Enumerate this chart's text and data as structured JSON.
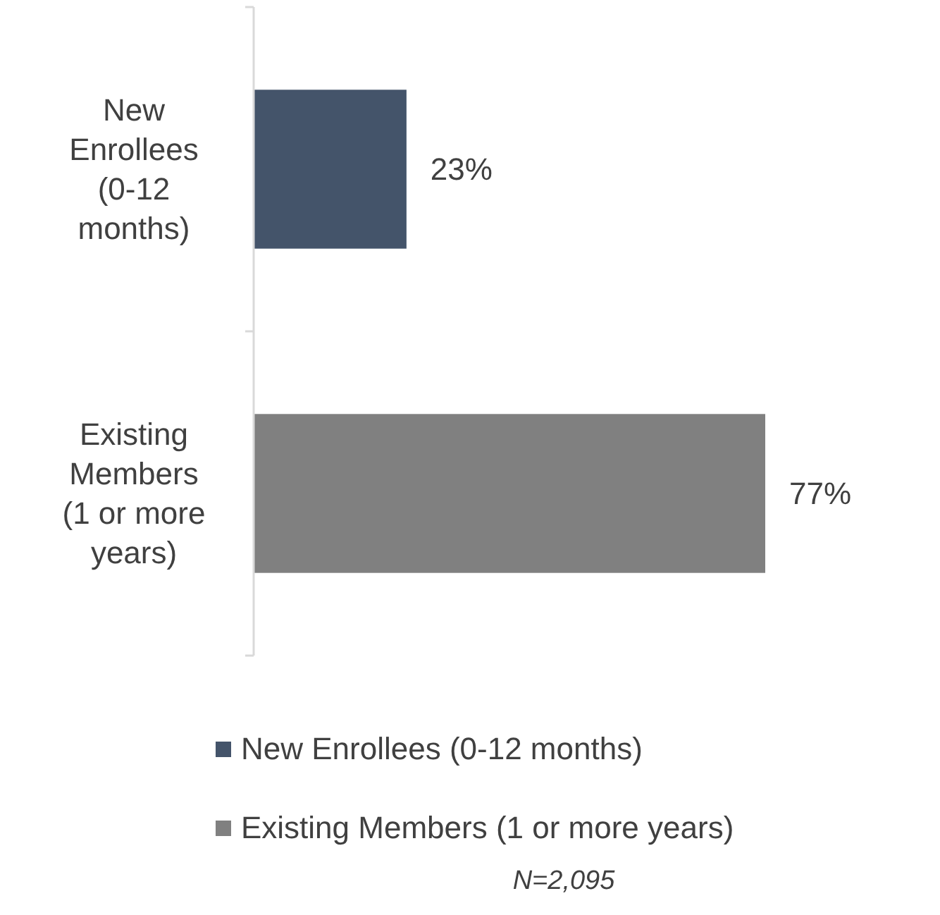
{
  "chart_data": {
    "type": "bar",
    "orientation": "horizontal",
    "stacked": true,
    "categories": [
      "New Enrollees (0-12 months)",
      "Existing Members (1 or more years)"
    ],
    "series": [
      {
        "name": "New Enrollees (0-12 months)",
        "color": "#44546a",
        "values": [
          23,
          null
        ],
        "value_labels": [
          "23%",
          null
        ]
      },
      {
        "name": "Existing Members (1 or more years)",
        "color": "#808080",
        "values": [
          null,
          77
        ],
        "value_labels": [
          null,
          "77%"
        ]
      }
    ],
    "legend": "bottom",
    "grid": false,
    "tick_labels": "y",
    "annotations": [
      "N=2,095"
    ]
  }
}
